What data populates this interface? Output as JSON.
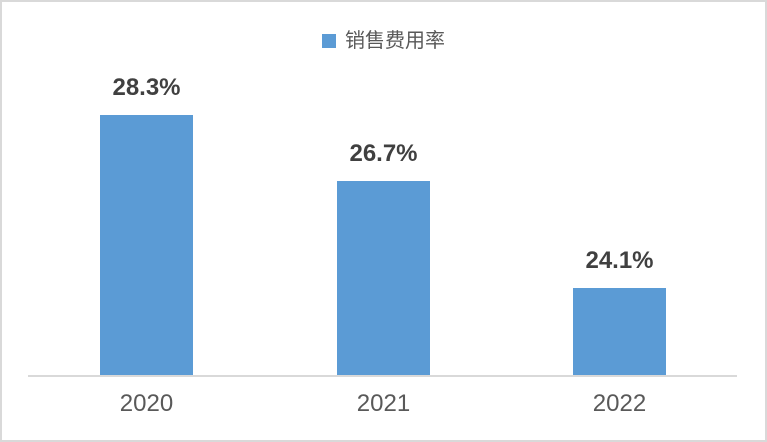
{
  "chart_data": {
    "type": "bar",
    "title": "",
    "xlabel": "",
    "ylabel": "",
    "categories": [
      "2020",
      "2021",
      "2022"
    ],
    "series": [
      {
        "name": "销售费用率",
        "values": [
          28.3,
          26.7,
          24.1
        ],
        "data_labels": [
          "28.3%",
          "26.7%",
          "24.1%"
        ]
      }
    ],
    "ylim": [
      22,
      30
    ],
    "grid": false,
    "legend_position": "top",
    "colors": {
      "bar": "#5B9BD5",
      "axis_line": "#D9D9D9",
      "frame_border": "#D9D9D9",
      "data_label": "#404040",
      "tick_label": "#595959",
      "legend_text": "#595959",
      "background": "#FFFFFF"
    }
  },
  "legend": {
    "label": "销售费用率",
    "marker": "square-icon"
  }
}
